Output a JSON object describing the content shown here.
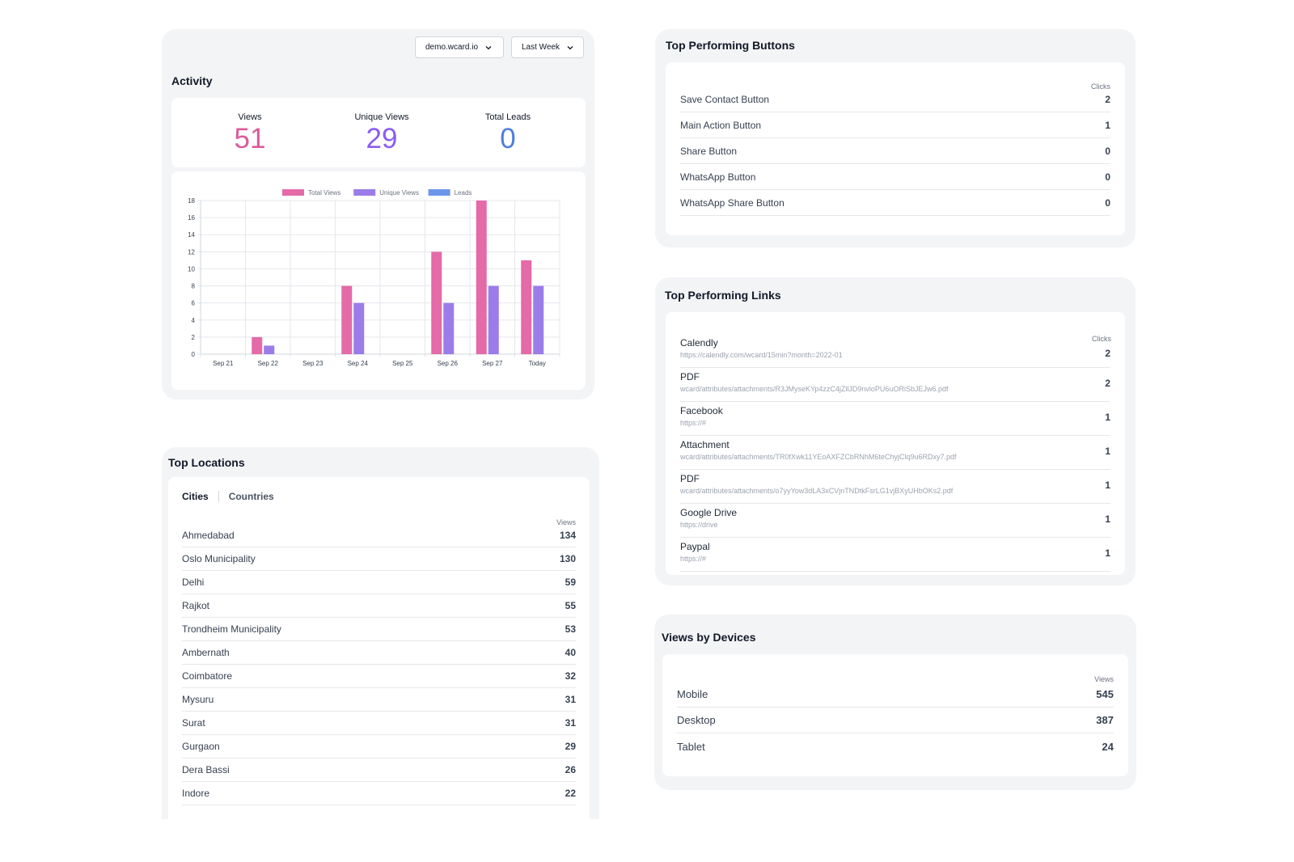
{
  "activity": {
    "title": "Activity",
    "domain_select": "demo.wcard.io",
    "range_select": "Last Week",
    "stats": [
      {
        "label": "Views",
        "value": "51",
        "color": "#db5c9a"
      },
      {
        "label": "Unique Views",
        "value": "29",
        "color": "#8b5cf6"
      },
      {
        "label": "Total Leads",
        "value": "0",
        "color": "#4f7de0"
      }
    ]
  },
  "chart_data": {
    "type": "bar",
    "categories": [
      "Sep 21",
      "Sep 22",
      "Sep 23",
      "Sep 24",
      "Sep 25",
      "Sep 26",
      "Sep 27",
      "Today"
    ],
    "series": [
      {
        "name": "Total Views",
        "color": "#e46aa8",
        "values": [
          0,
          2,
          0,
          8,
          0,
          12,
          18,
          11
        ]
      },
      {
        "name": "Unique Views",
        "color": "#9b7ce8",
        "values": [
          0,
          1,
          0,
          6,
          0,
          6,
          8,
          8
        ]
      },
      {
        "name": "Leads",
        "color": "#6c97ea",
        "values": [
          0,
          0,
          0,
          0,
          0,
          0,
          0,
          0
        ]
      }
    ],
    "ylim": [
      0,
      18
    ],
    "yticks": [
      "0",
      "2",
      "4",
      "6",
      "8",
      "10",
      "12",
      "14",
      "16",
      "18"
    ],
    "grid": true,
    "legend": "top-center"
  },
  "locations": {
    "title": "Top Locations",
    "tabs": [
      "Cities",
      "Countries"
    ],
    "column": "Views",
    "rows": [
      {
        "name": "Ahmedabad",
        "value": "134"
      },
      {
        "name": "Oslo Municipality",
        "value": "130"
      },
      {
        "name": "Delhi",
        "value": "59"
      },
      {
        "name": "Rajkot",
        "value": "55"
      },
      {
        "name": "Trondheim Municipality",
        "value": "53"
      },
      {
        "name": "Ambernath",
        "value": "40"
      },
      {
        "name": "Coimbatore",
        "value": "32"
      },
      {
        "name": "Mysuru",
        "value": "31"
      },
      {
        "name": "Surat",
        "value": "31"
      },
      {
        "name": "Gurgaon",
        "value": "29"
      },
      {
        "name": "Dera Bassi",
        "value": "26"
      },
      {
        "name": "Indore",
        "value": "22"
      }
    ]
  },
  "buttons": {
    "title": "Top Performing Buttons",
    "column": "Clicks",
    "rows": [
      {
        "name": "Save Contact Button",
        "value": "2"
      },
      {
        "name": "Main Action Button",
        "value": "1"
      },
      {
        "name": "Share Button",
        "value": "0"
      },
      {
        "name": "WhatsApp Button",
        "value": "0"
      },
      {
        "name": "WhatsApp Share Button",
        "value": "0"
      }
    ]
  },
  "links": {
    "title": "Top Performing Links",
    "column": "Clicks",
    "rows": [
      {
        "name": "Calendly",
        "url": "https://calendly.com/wcard/15min?month=2022-01",
        "value": "2"
      },
      {
        "name": "PDF",
        "url": "wcard/attributes/attachments/R3JMyseKYp4zzC4jZllJD9nvloPU6uORiSbJEJw6.pdf",
        "value": "2"
      },
      {
        "name": "Facebook",
        "url": "https://#",
        "value": "1"
      },
      {
        "name": "Attachment",
        "url": "wcard/attributes/attachments/TR0fXwk11YEoAXFZCbRNhM6teChyjClq9u6RDxy7.pdf",
        "value": "1"
      },
      {
        "name": "PDF",
        "url": "wcard/attributes/attachments/o7yyYow3dLA3xCVjnTNDtkFsrLG1vjBXyUHbOKs2.pdf",
        "value": "1"
      },
      {
        "name": "Google Drive",
        "url": "https://drive",
        "value": "1"
      },
      {
        "name": "Paypal",
        "url": "https://#",
        "value": "1"
      }
    ]
  },
  "devices": {
    "title": "Views by Devices",
    "column": "Views",
    "rows": [
      {
        "name": "Mobile",
        "value": "545"
      },
      {
        "name": "Desktop",
        "value": "387"
      },
      {
        "name": "Tablet",
        "value": "24"
      }
    ]
  }
}
